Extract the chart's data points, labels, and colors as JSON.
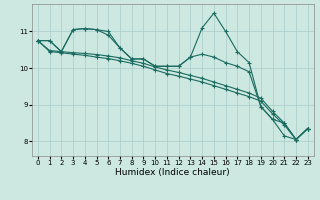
{
  "xlabel": "Humidex (Indice chaleur)",
  "bg_color": "#cce8e0",
  "grid_color": "#aacccc",
  "line_color": "#1a6b60",
  "xlim": [
    -0.5,
    23.5
  ],
  "ylim": [
    7.6,
    11.75
  ],
  "yticks": [
    8,
    9,
    10,
    11
  ],
  "xticks": [
    0,
    1,
    2,
    3,
    4,
    5,
    6,
    7,
    8,
    9,
    10,
    11,
    12,
    13,
    14,
    15,
    16,
    17,
    18,
    19,
    20,
    21,
    22,
    23
  ],
  "line_peak": {
    "x": [
      0,
      1,
      2,
      3,
      4,
      5,
      6,
      7,
      8,
      9,
      10,
      11,
      12,
      13,
      14,
      15,
      16,
      17,
      18,
      19,
      20,
      21,
      22,
      23
    ],
    "y": [
      10.75,
      10.75,
      10.45,
      11.05,
      11.08,
      11.05,
      11.0,
      10.55,
      10.25,
      10.25,
      10.05,
      10.05,
      10.05,
      10.3,
      11.1,
      11.5,
      11.0,
      10.45,
      10.15,
      8.95,
      8.6,
      8.15,
      8.05,
      8.35
    ]
  },
  "line_high": {
    "x": [
      0,
      1,
      2,
      3,
      4,
      5,
      6,
      7,
      8,
      9,
      10,
      11,
      12,
      13,
      14,
      15,
      16,
      17,
      18,
      19,
      20,
      21,
      22,
      23
    ],
    "y": [
      10.75,
      10.75,
      10.45,
      11.05,
      11.08,
      11.05,
      10.9,
      10.55,
      10.25,
      10.25,
      10.05,
      10.05,
      10.05,
      10.3,
      10.38,
      10.3,
      10.15,
      10.05,
      9.9,
      8.95,
      8.6,
      8.5,
      8.05,
      8.35
    ]
  },
  "line_mid": {
    "x": [
      0,
      1,
      2,
      3,
      4,
      5,
      6,
      7,
      8,
      9,
      10,
      11,
      12,
      13,
      14,
      15,
      16,
      17,
      18,
      19,
      20,
      21,
      22,
      23
    ],
    "y": [
      10.75,
      10.48,
      10.45,
      10.42,
      10.4,
      10.37,
      10.33,
      10.28,
      10.2,
      10.13,
      10.03,
      9.95,
      9.88,
      9.8,
      9.72,
      9.62,
      9.52,
      9.42,
      9.32,
      9.18,
      8.82,
      8.5,
      8.05,
      8.35
    ]
  },
  "line_low": {
    "x": [
      0,
      1,
      2,
      3,
      4,
      5,
      6,
      7,
      8,
      9,
      10,
      11,
      12,
      13,
      14,
      15,
      16,
      17,
      18,
      19,
      20,
      21,
      22,
      23
    ],
    "y": [
      10.75,
      10.45,
      10.42,
      10.38,
      10.35,
      10.3,
      10.26,
      10.2,
      10.13,
      10.05,
      9.95,
      9.85,
      9.78,
      9.7,
      9.62,
      9.52,
      9.42,
      9.32,
      9.22,
      9.1,
      8.75,
      8.45,
      8.05,
      8.35
    ]
  }
}
